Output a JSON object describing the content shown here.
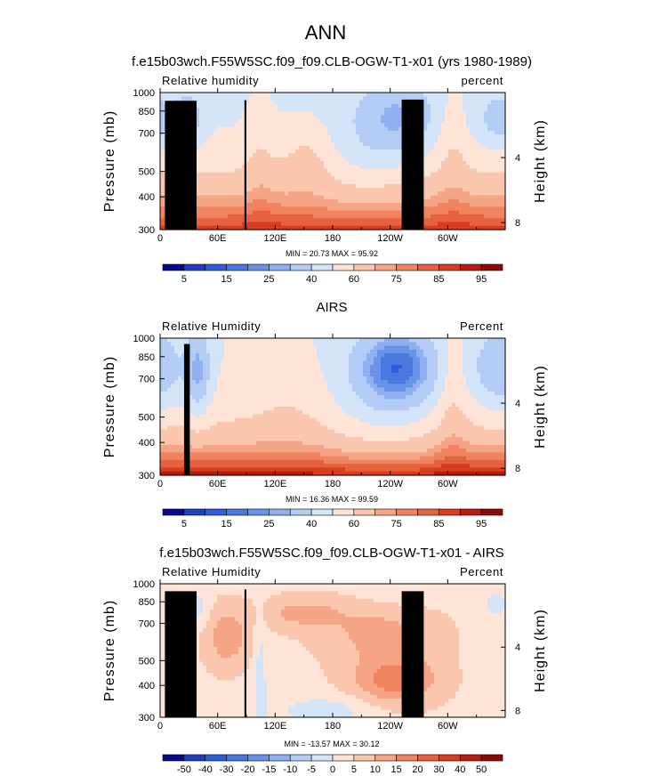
{
  "page": {
    "title": "ANN"
  },
  "chart_data": [
    {
      "type": "heatmap",
      "title": "f.e15b03wch.F55W5SC.f09_f09.CLB-OGW-T1-x01 (yrs 1980-1989)",
      "subtitle_left": "Relative humidity",
      "subtitle_right": "percent",
      "ylabel": "Pressure (mb)",
      "ylabel_right": "Height (km)",
      "xlabel": "",
      "x_ticks": [
        "0",
        "60E",
        "120E",
        "180",
        "120W",
        "60W"
      ],
      "y_ticks": [
        "300",
        "400",
        "500",
        "700",
        "850",
        "1000"
      ],
      "y_right_ticks": [
        "8",
        "4"
      ],
      "xlim": [
        0,
        360
      ],
      "ylim": [
        1000,
        300
      ],
      "y_scale": "log-pressure",
      "stats": "MIN =   20.73   MAX =   95.92",
      "colorbar_labels": [
        "5",
        "15",
        "25",
        "40",
        "60",
        "75",
        "85",
        "95"
      ],
      "colorbar_levels": [
        0,
        5,
        10,
        15,
        20,
        25,
        30,
        40,
        50,
        60,
        70,
        75,
        80,
        85,
        90,
        95,
        100
      ],
      "colorbar_colors": [
        "#08088c",
        "#1f3fbf",
        "#2f5fd8",
        "#4a78e0",
        "#6a93e8",
        "#8fb0f0",
        "#b3ccf5",
        "#d4e4f8",
        "#fde4d6",
        "#fac6ae",
        "#f5a586",
        "#f08360",
        "#e8613f",
        "#d83d20",
        "#b81c10",
        "#8e0808"
      ],
      "min": 20.73,
      "max": 95.92
    },
    {
      "type": "heatmap",
      "title": "AIRS",
      "subtitle_left": "Relative Humidity",
      "subtitle_right": "Percent",
      "ylabel": "Pressure (mb)",
      "ylabel_right": "Height (km)",
      "xlabel": "",
      "x_ticks": [
        "0",
        "60E",
        "120E",
        "180",
        "120W",
        "60W"
      ],
      "y_ticks": [
        "300",
        "400",
        "500",
        "700",
        "850",
        "1000"
      ],
      "y_right_ticks": [
        "8",
        "4"
      ],
      "xlim": [
        0,
        360
      ],
      "ylim": [
        1000,
        300
      ],
      "y_scale": "log-pressure",
      "stats": "MIN =   16.36   MAX =   99.59",
      "colorbar_labels": [
        "5",
        "15",
        "25",
        "40",
        "60",
        "75",
        "85",
        "95"
      ],
      "colorbar_levels": [
        0,
        5,
        10,
        15,
        20,
        25,
        30,
        40,
        50,
        60,
        70,
        75,
        80,
        85,
        90,
        95,
        100
      ],
      "colorbar_colors": [
        "#08088c",
        "#1f3fbf",
        "#2f5fd8",
        "#4a78e0",
        "#6a93e8",
        "#8fb0f0",
        "#b3ccf5",
        "#d4e4f8",
        "#fde4d6",
        "#fac6ae",
        "#f5a586",
        "#f08360",
        "#e8613f",
        "#d83d20",
        "#b81c10",
        "#8e0808"
      ],
      "min": 16.36,
      "max": 99.59
    },
    {
      "type": "heatmap",
      "title": "f.e15b03wch.F55W5SC.f09_f09.CLB-OGW-T1-x01 - AIRS",
      "subtitle_left": "Relative Humidity",
      "subtitle_right": "Percent",
      "ylabel": "Pressure (mb)",
      "ylabel_right": "Height (km)",
      "xlabel": "",
      "x_ticks": [
        "0",
        "60E",
        "120E",
        "180",
        "120W",
        "60W"
      ],
      "y_ticks": [
        "300",
        "400",
        "500",
        "700",
        "850",
        "1000"
      ],
      "y_right_ticks": [
        "8",
        "4"
      ],
      "xlim": [
        0,
        360
      ],
      "ylim": [
        1000,
        300
      ],
      "y_scale": "log-pressure",
      "stats": "MIN =  -13.57   MAX =   30.12",
      "colorbar_labels": [
        "-50",
        "-40",
        "-30",
        "-20",
        "-15",
        "-10",
        "-5",
        "0",
        "5",
        "10",
        "15",
        "20",
        "30",
        "40",
        "50"
      ],
      "colorbar_levels": [
        -60,
        -50,
        -40,
        -30,
        -20,
        -15,
        -10,
        -5,
        0,
        5,
        10,
        15,
        20,
        30,
        40,
        50,
        60
      ],
      "colorbar_colors": [
        "#08088c",
        "#1f3fbf",
        "#2f5fd8",
        "#4a78e0",
        "#6a93e8",
        "#8fb0f0",
        "#b3ccf5",
        "#d4e4f8",
        "#fde4d6",
        "#fac6ae",
        "#f5a586",
        "#f08360",
        "#e8613f",
        "#d83d20",
        "#b81c10",
        "#8e0808"
      ],
      "min": -13.57,
      "max": 30.12
    }
  ]
}
